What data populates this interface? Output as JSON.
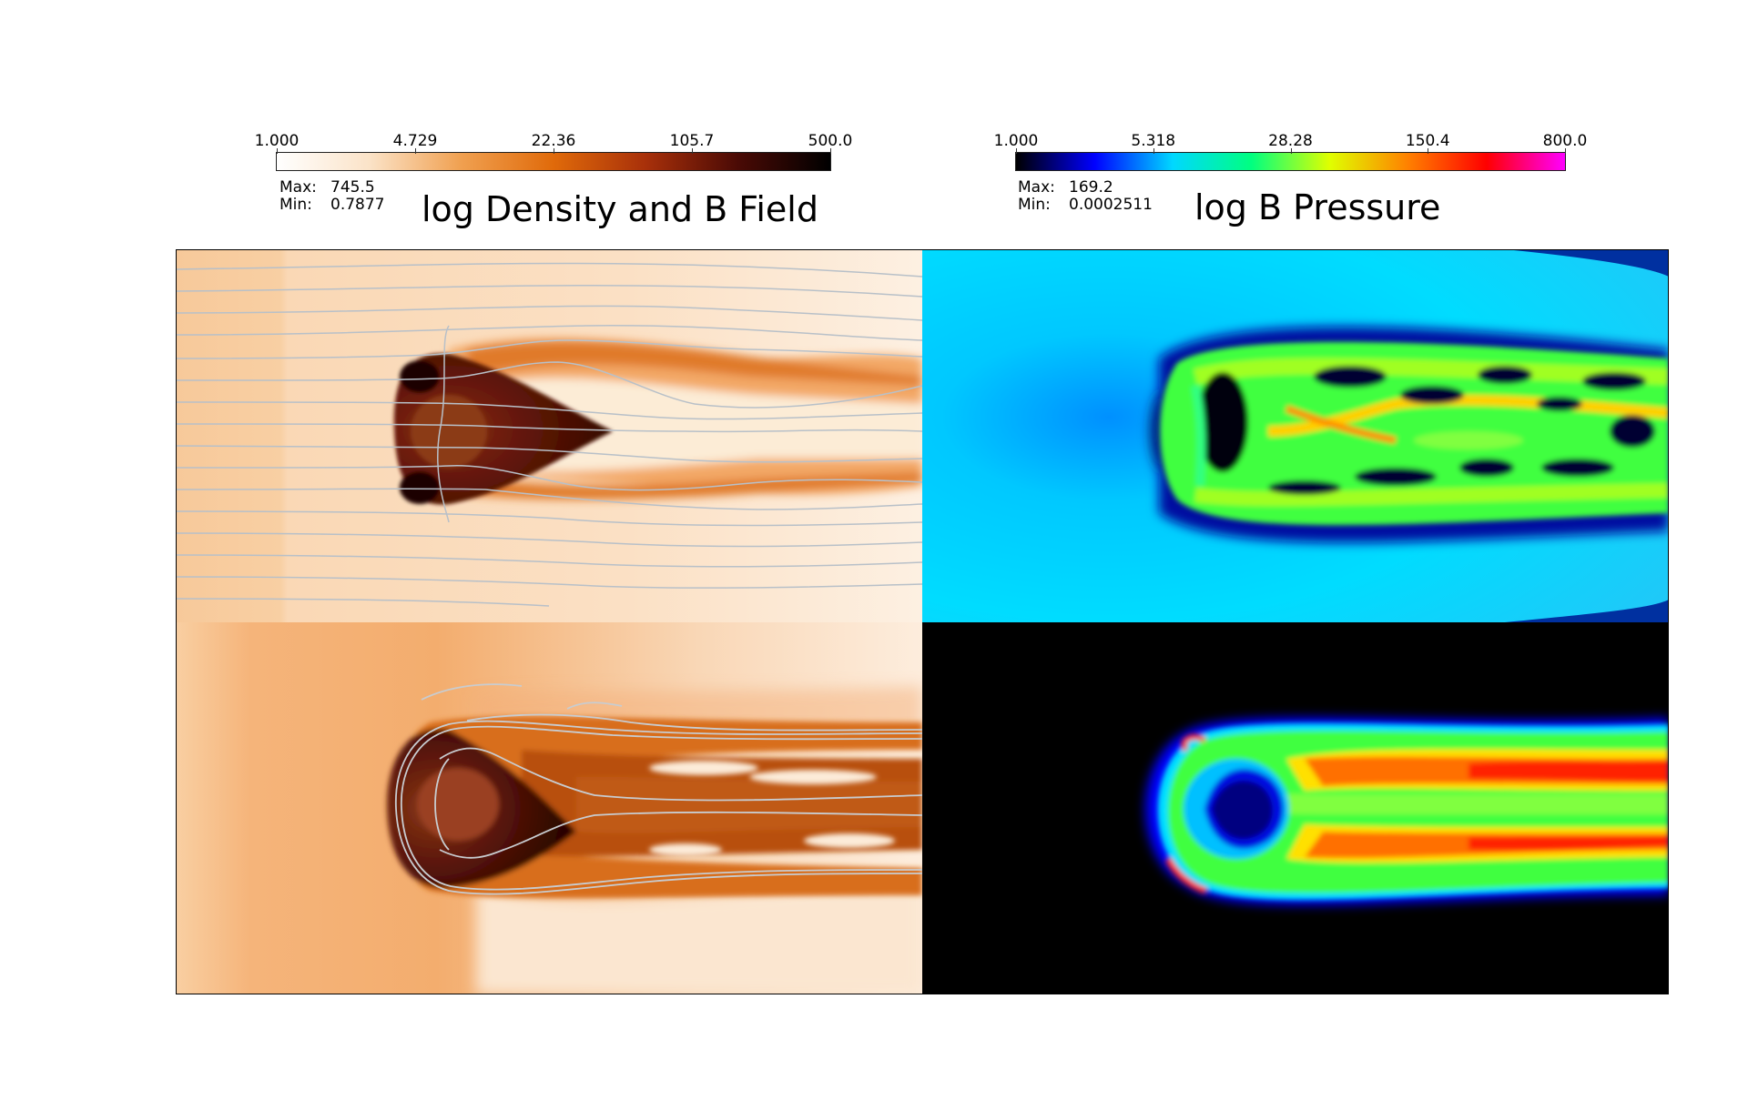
{
  "left": {
    "colorbar": {
      "ticks": [
        "1.000",
        "4.729",
        "22.36",
        "105.7",
        "500.0"
      ],
      "colors": [
        "#ffffff",
        "#fbe3c8",
        "#f0a050",
        "#e06a0a",
        "#a8300a",
        "#4a0a05",
        "#000000"
      ]
    },
    "max_label": "Max:",
    "max_value": "745.5",
    "min_label": "Min:",
    "min_value": "0.7877",
    "title": "log Density and B Field"
  },
  "right": {
    "colorbar": {
      "ticks": [
        "1.000",
        "5.318",
        "28.28",
        "150.4",
        "800.0"
      ],
      "colors": [
        "#000000",
        "#0000ff",
        "#00d8ff",
        "#00ff80",
        "#e0ff00",
        "#ff8000",
        "#ff0000",
        "#ff00ff"
      ]
    },
    "max_label": "Max:",
    "max_value": "169.2",
    "min_label": "Min:",
    "min_value": "0.0002511",
    "title": "log B Pressure"
  },
  "panels": {
    "top_left": "density-with-field-lines",
    "top_right": "magnetic-pressure",
    "bottom_left": "density-with-field-lines",
    "bottom_right": "magnetic-pressure"
  }
}
